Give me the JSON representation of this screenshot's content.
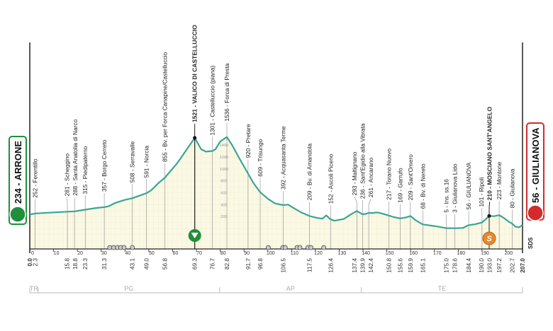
{
  "chart_data": {
    "type": "area",
    "xlabel": "",
    "ylabel": "",
    "xlim": [
      0,
      207
    ],
    "ylim": [
      0,
      1600
    ],
    "x_ticks": [
      0,
      10,
      20,
      30,
      40,
      50,
      60,
      70,
      80,
      90,
      100,
      110,
      120,
      130,
      140,
      150,
      160,
      170,
      180,
      190,
      200
    ],
    "y_ticks": [
      0,
      200,
      400,
      600,
      800,
      1000,
      1200,
      1400
    ],
    "grid": true,
    "profile_color": "#3aa597",
    "fill_color": "#fbf8e4",
    "start": {
      "km": "0.0",
      "elevation": 234,
      "label": "234 - ARRONE",
      "color": "#1f8f3a"
    },
    "finish": {
      "km": "207.0",
      "elevation": 56,
      "label": "56 - GIULIANOVA",
      "color": "#d42a2a"
    },
    "profile": [
      [
        0,
        234
      ],
      [
        2.3,
        252
      ],
      [
        8,
        265
      ],
      [
        15.8,
        281
      ],
      [
        18.8,
        288
      ],
      [
        23.3,
        315
      ],
      [
        28,
        345
      ],
      [
        31.3,
        357
      ],
      [
        33,
        372
      ],
      [
        36,
        430
      ],
      [
        40,
        480
      ],
      [
        43.1,
        508
      ],
      [
        49,
        591
      ],
      [
        51,
        640
      ],
      [
        54,
        760
      ],
      [
        56.8,
        855
      ],
      [
        62,
        1100
      ],
      [
        66,
        1330
      ],
      [
        69.3,
        1521
      ],
      [
        72,
        1330
      ],
      [
        74,
        1290
      ],
      [
        76.7,
        1301
      ],
      [
        78,
        1330
      ],
      [
        80,
        1460
      ],
      [
        82.8,
        1536
      ],
      [
        85,
        1400
      ],
      [
        88,
        1180
      ],
      [
        91.7,
        920
      ],
      [
        94,
        760
      ],
      [
        96.8,
        609
      ],
      [
        100,
        500
      ],
      [
        103,
        420
      ],
      [
        106.5,
        392
      ],
      [
        108.5,
        400
      ],
      [
        111,
        340
      ],
      [
        114,
        270
      ],
      [
        117.5,
        209
      ],
      [
        121,
        175
      ],
      [
        123,
        165
      ],
      [
        124.5,
        220
      ],
      [
        126.4,
        152
      ],
      [
        128,
        130
      ],
      [
        132,
        160
      ],
      [
        135,
        240
      ],
      [
        137.4,
        293
      ],
      [
        139.9,
        236
      ],
      [
        141,
        245
      ],
      [
        142.4,
        261
      ],
      [
        144,
        260
      ],
      [
        146,
        270
      ],
      [
        148,
        250
      ],
      [
        150.8,
        217
      ],
      [
        153,
        190
      ],
      [
        155.6,
        169
      ],
      [
        158,
        185
      ],
      [
        159.9,
        209
      ],
      [
        162,
        140
      ],
      [
        165.1,
        68
      ],
      [
        170,
        40
      ],
      [
        175,
        5
      ],
      [
        178.6,
        3
      ],
      [
        182,
        10
      ],
      [
        184.4,
        56
      ],
      [
        187,
        70
      ],
      [
        190,
        101
      ],
      [
        193,
        210
      ],
      [
        195,
        205
      ],
      [
        197.2,
        223
      ],
      [
        199,
        180
      ],
      [
        201,
        120
      ],
      [
        202.7,
        80
      ],
      [
        204,
        30
      ],
      [
        205.5,
        20
      ],
      [
        207,
        56
      ]
    ],
    "points": [
      {
        "km": "2.3",
        "elev": 252,
        "name": "252 - Ferentillo",
        "bold": false
      },
      {
        "km": "15.8",
        "elev": 281,
        "name": "281 - Scheggino",
        "bold": false
      },
      {
        "km": "18.8",
        "elev": 288,
        "name": "288 - Santa Anatolia di Narco",
        "bold": false
      },
      {
        "km": "23.3",
        "elev": 315,
        "name": "315 - Piedipaterno",
        "bold": false
      },
      {
        "km": "31.3",
        "elev": 357,
        "name": "357 - Borgo Cerreto",
        "bold": false
      },
      {
        "km": "43.1",
        "elev": 508,
        "name": "508 - Serravalle",
        "bold": false
      },
      {
        "km": "49.0",
        "elev": 591,
        "name": "591 - Norcia",
        "bold": false
      },
      {
        "km": "56.8",
        "elev": 855,
        "name": "855 - Bv. per Forca Canapine/Castelluccio",
        "bold": false
      },
      {
        "km": "69.3",
        "elev": 1521,
        "name": "1521 - VALICO DI CASTELLUCCIO",
        "bold": true
      },
      {
        "km": "76.7",
        "elev": 1301,
        "name": "1301 - Castelluccio (piana)",
        "bold": false
      },
      {
        "km": "82.8",
        "elev": 1536,
        "name": "1536 - Forca di Presta",
        "bold": false
      },
      {
        "km": "91.7",
        "elev": 920,
        "name": "920 - Pretare",
        "bold": false
      },
      {
        "km": "96.8",
        "elev": 609,
        "name": "609 - Trisungo",
        "bold": false
      },
      {
        "km": "106.5",
        "elev": 392,
        "name": "392 - Acquasanta Terme",
        "bold": false
      },
      {
        "km": "117.5",
        "elev": 209,
        "name": "209 - Bv. di Amandola",
        "bold": false
      },
      {
        "km": "126.4",
        "elev": 152,
        "name": "152 - Ascoli Piceno",
        "bold": false
      },
      {
        "km": "137.4",
        "elev": 293,
        "name": "293 - Maltignano",
        "bold": false
      },
      {
        "km": "139.9",
        "elev": 236,
        "name": "236 - Sant'Egidio alla Vibrata",
        "bold": false
      },
      {
        "km": "142.4",
        "elev": 261,
        "name": "261 - Ancarano",
        "bold": false
      },
      {
        "km": "150.8",
        "elev": 217,
        "name": "217 - Torano Nuovo",
        "bold": false
      },
      {
        "km": "155.6",
        "elev": 169,
        "name": "169 - Garrufo",
        "bold": false
      },
      {
        "km": "159.9",
        "elev": 209,
        "name": "209 - Sant'Omero",
        "bold": false
      },
      {
        "km": "165.1",
        "elev": 68,
        "name": "68 - Bv. di Nereto",
        "bold": false
      },
      {
        "km": "175.0",
        "elev": 5,
        "name": "5 - Ins. ss.16",
        "bold": false
      },
      {
        "km": "178.6",
        "elev": 3,
        "name": "3 - Giulianova Lido",
        "bold": false
      },
      {
        "km": "184.4",
        "elev": 56,
        "name": "56 - GIULIANOVA",
        "bold": false
      },
      {
        "km": "190.0",
        "elev": 101,
        "name": "101 - Ripoli",
        "bold": false
      },
      {
        "km": "193.0",
        "elev": 210,
        "name": "210 - MOSCIANO SANT'ANGELO",
        "bold": true
      },
      {
        "km": "197.2",
        "elev": 223,
        "name": "223 - Montone",
        "bold": false
      },
      {
        "km": "202.7",
        "elev": 80,
        "name": "80 - Giulianova",
        "bold": false
      }
    ],
    "kom": {
      "km": 69.3,
      "icon": "kom-triangle-icon",
      "color": "#1f8f3a"
    },
    "sprint": {
      "km": 193.0,
      "label": "S",
      "icon": "sprint-icon",
      "color": "#e8892a"
    },
    "road_markers_km": [
      33.6,
      35.2,
      36.8,
      38.2,
      39.6,
      43.1,
      100.2,
      106.3,
      107.3,
      112.3,
      113.5,
      116.9,
      118.1,
      123.5
    ],
    "regions": [
      {
        "label": "TR",
        "from": 0,
        "to": 3.5
      },
      {
        "label": "PG",
        "from": 3.5,
        "to": 79.8
      },
      {
        "label": "AP",
        "from": 79.8,
        "to": 139.3
      },
      {
        "label": "TE",
        "from": 139.3,
        "to": 207
      }
    ],
    "logo": "SDS"
  }
}
